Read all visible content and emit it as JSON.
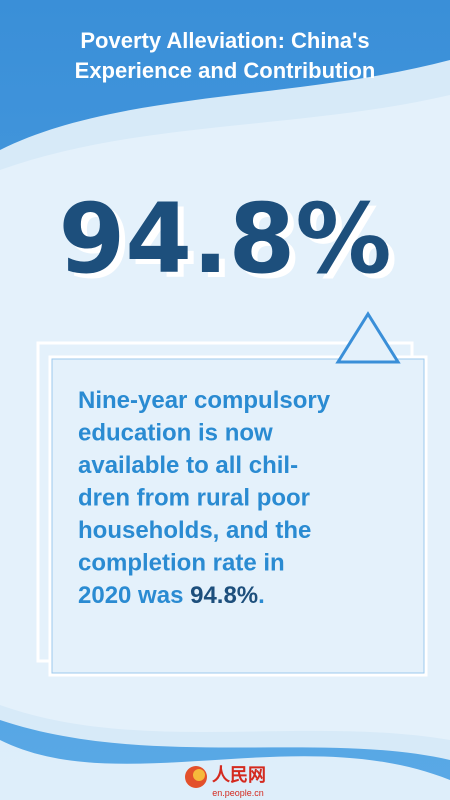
{
  "header": {
    "title_lines": [
      "Poverty Alleviation: China's",
      "Experience and Contribution"
    ]
  },
  "stat": "94.8%",
  "body": {
    "lines": [
      "Nine-year compulsory",
      "education is now",
      "available to all chil-",
      "dren from rural poor",
      "households, and the",
      "completion rate in"
    ],
    "last_line": [
      "2020 was ",
      "94.8%",
      "."
    ]
  },
  "footer": {
    "logo": "人民网",
    "site": "en.people.cn"
  }
}
